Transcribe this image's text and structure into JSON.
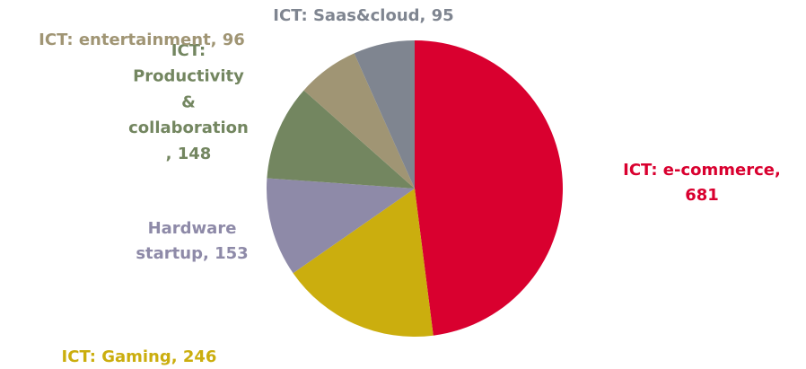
{
  "chart_data": {
    "type": "pie",
    "values": [
      681,
      246,
      153,
      148,
      96,
      95
    ],
    "value_labels": [
      [
        "ICT: e-commerce,",
        "681"
      ],
      [
        "ICT: Gaming, 246"
      ],
      [
        "Hardware",
        "startup, 153"
      ],
      [
        "ICT:",
        "Productivity",
        "&",
        "collaboration",
        ", 148"
      ],
      [
        "ICT: entertainment, 96"
      ],
      [
        "ICT: Saas&cloud, 95"
      ]
    ],
    "colors": [
      "#d9002f",
      "#cbae0e",
      "#8e8aa8",
      "#738660",
      "#a09574",
      "#7f8590"
    ]
  }
}
